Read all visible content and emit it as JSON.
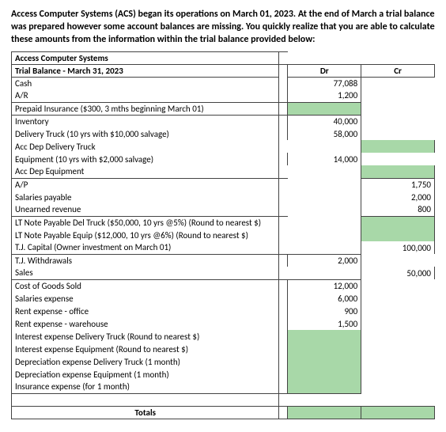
{
  "intro": {
    "bold_part": "Access Computer Systems (ACS) began its operations on March 01, 2023. At the end of March a trial balance was prepared however some account balances are missing. You quickly realize that you are able to calculate these amounts from the information within the trial balance provided below:",
    "pre_bold": ""
  },
  "company_name": "Access Computer Systems",
  "tb_title": "Trial Balance - March 31, 2023",
  "col_dr": "Dr",
  "col_cr": "Cr",
  "rows": [
    {
      "label": "Cash",
      "dr": "77,088",
      "cr": "",
      "dr_class": "filled",
      "cr_class": "",
      "sect": "first"
    },
    {
      "label": "A/R",
      "dr": "1,200",
      "cr": "",
      "dr_class": "filled",
      "cr_class": "",
      "sect": ""
    },
    {
      "label": "Prepaid Insurance ($300, 3 mths beginning March 01)",
      "dr": "",
      "cr": "",
      "dr_class": "empty-highlight",
      "cr_class": "",
      "sect": "top"
    },
    {
      "label": "Inventory",
      "dr": "40,000",
      "cr": "",
      "dr_class": "filled",
      "cr_class": "",
      "sect": "top"
    },
    {
      "label": "Delivery Truck (10 yrs with $10,000 salvage)",
      "dr": "58,000",
      "cr": "",
      "dr_class": "filled",
      "cr_class": "",
      "sect": ""
    },
    {
      "label": "Acc Dep Delivery Truck",
      "dr": "",
      "cr": "",
      "dr_class": "",
      "cr_class": "empty-highlight",
      "sect": ""
    },
    {
      "label": "Equipment (10 yrs with $2,000 salvage)",
      "dr": "14,000",
      "cr": "",
      "dr_class": "filled",
      "cr_class": "",
      "sect": ""
    },
    {
      "label": "Acc Dep Equipment",
      "dr": "",
      "cr": "",
      "dr_class": "",
      "cr_class": "empty-highlight",
      "sect": ""
    },
    {
      "label": "A/P",
      "dr": "",
      "cr": "1,750",
      "dr_class": "",
      "cr_class": "filled",
      "sect": "top"
    },
    {
      "label": "Salaries payable",
      "dr": "",
      "cr": "2,000",
      "dr_class": "",
      "cr_class": "filled",
      "sect": ""
    },
    {
      "label": "Unearned revenue",
      "dr": "",
      "cr": "800",
      "dr_class": "",
      "cr_class": "filled",
      "sect": ""
    },
    {
      "label": "LT Note Payable Del Truck ($50,000, 10 yrs @5%) (Round to nearest $)",
      "dr": "",
      "cr": "",
      "dr_class": "",
      "cr_class": "empty-highlight",
      "sect": "top"
    },
    {
      "label": "LT Note Payable Equip ($12,000, 10 yrs @6%) (Round to nearest $)",
      "dr": "",
      "cr": "",
      "dr_class": "",
      "cr_class": "empty-highlight",
      "sect": ""
    },
    {
      "label": "T.J. Capital (Owner investment on March 01)",
      "dr": "",
      "cr": "100,000",
      "dr_class": "",
      "cr_class": "filled",
      "sect": ""
    },
    {
      "label": "T.J. Withdrawals",
      "dr": "2,000",
      "cr": "",
      "dr_class": "filled",
      "cr_class": "",
      "sect": "top"
    },
    {
      "label": "Sales",
      "dr": "",
      "cr": "50,000",
      "dr_class": "",
      "cr_class": "filled",
      "sect": ""
    },
    {
      "label": "Cost of Goods Sold",
      "dr": "12,000",
      "cr": "",
      "dr_class": "filled",
      "cr_class": "",
      "sect": "top"
    },
    {
      "label": "Salaries expense",
      "dr": "6,000",
      "cr": "",
      "dr_class": "filled",
      "cr_class": "",
      "sect": ""
    },
    {
      "label": "Rent expense - office",
      "dr": "900",
      "cr": "",
      "dr_class": "filled",
      "cr_class": "",
      "sect": ""
    },
    {
      "label": "Rent expense - warehouse",
      "dr": "1,500",
      "cr": "",
      "dr_class": "filled",
      "cr_class": "",
      "sect": ""
    },
    {
      "label": "Interest expense Delivery Truck (Round to nearest $)",
      "dr": "",
      "cr": "",
      "dr_class": "empty-highlight",
      "cr_class": "",
      "sect": ""
    },
    {
      "label": "Interest expense Equipment (Round to nearest $)",
      "dr": "",
      "cr": "",
      "dr_class": "empty-highlight",
      "cr_class": "",
      "sect": ""
    },
    {
      "label": "Depreciation expense Delivery Truck (1 month)",
      "dr": "",
      "cr": "",
      "dr_class": "empty-highlight",
      "cr_class": "",
      "sect": ""
    },
    {
      "label": "Depreciation expense Equipment (1 month)",
      "dr": "",
      "cr": "",
      "dr_class": "empty-highlight",
      "cr_class": "",
      "sect": ""
    },
    {
      "label": "Insurance expense (for 1 month)",
      "dr": "",
      "cr": "",
      "dr_class": "empty-highlight",
      "cr_class": "",
      "sect": "bottom"
    }
  ],
  "totals_label": "Totals",
  "colors": {
    "highlight": "#a8d8a8",
    "border": "#444444",
    "background": "#ffffff"
  }
}
